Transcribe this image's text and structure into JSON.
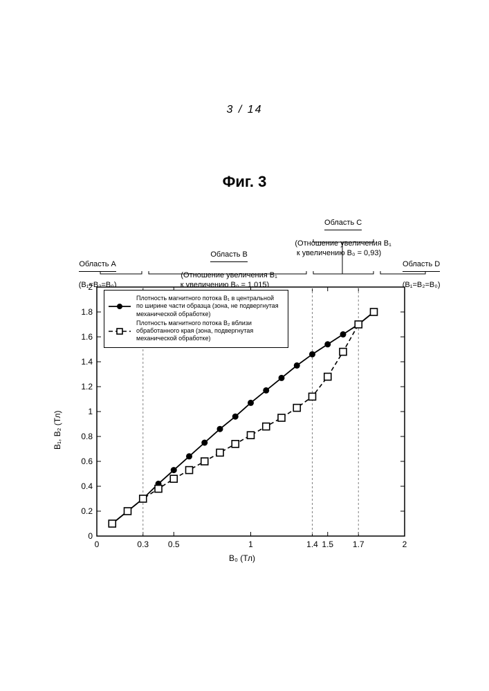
{
  "page": {
    "number": "3 / 14",
    "figure_title": "Фиг. 3"
  },
  "regions": {
    "A": {
      "title": "Область А",
      "detail": "(B₁=B₂=B₀)"
    },
    "B": {
      "title": "Область В",
      "detail": "(Отношение увеличения B₁\nк увеличению B₀ = 1,015)"
    },
    "C": {
      "title": "Область С",
      "detail": "(Отношение увеличения B₁\nк увеличению B₀ = 0,93)"
    },
    "D": {
      "title": "Область D",
      "detail": "(B₁=B₂=B₀)"
    }
  },
  "chart": {
    "type": "line-scatter",
    "background_color": "#ffffff",
    "axis_color": "#000000",
    "guideline_color": "#808080",
    "guideline_dash": "3,3",
    "x": {
      "label": "B₀ (Тл)",
      "min": 0,
      "max": 2,
      "ticks": [
        0,
        0.3,
        0.5,
        1,
        1.4,
        1.5,
        1.7,
        2
      ]
    },
    "y": {
      "label": "B₁, B₂ (Тл)",
      "min": 0,
      "max": 2,
      "ticks": [
        0,
        0.2,
        0.4,
        0.6,
        0.8,
        1,
        1.2,
        1.4,
        1.6,
        1.8,
        2
      ]
    },
    "guidelines_x": [
      0.3,
      1.4,
      1.7
    ],
    "legend": {
      "series1": "Плотность магнитного потока B₁ в центральной\nпо ширине части образца (зона, не подвергнутая\nмеханической обработке)",
      "series2": "Плотность магнитного потока B₂ вблизи\nобработанного края (зона, подвергнутая\nмеханической обработке)"
    },
    "series1": {
      "name": "B1-central",
      "color": "#000000",
      "marker": "filled-circle",
      "marker_size": 4.5,
      "line_width": 1.8,
      "line_dash": "none",
      "data": [
        {
          "x": 0.1,
          "y": 0.1
        },
        {
          "x": 0.2,
          "y": 0.2
        },
        {
          "x": 0.3,
          "y": 0.3
        },
        {
          "x": 0.4,
          "y": 0.42
        },
        {
          "x": 0.5,
          "y": 0.53
        },
        {
          "x": 0.6,
          "y": 0.64
        },
        {
          "x": 0.7,
          "y": 0.75
        },
        {
          "x": 0.8,
          "y": 0.86
        },
        {
          "x": 0.9,
          "y": 0.96
        },
        {
          "x": 1.0,
          "y": 1.07
        },
        {
          "x": 1.1,
          "y": 1.17
        },
        {
          "x": 1.2,
          "y": 1.27
        },
        {
          "x": 1.3,
          "y": 1.37
        },
        {
          "x": 1.4,
          "y": 1.46
        },
        {
          "x": 1.5,
          "y": 1.54
        },
        {
          "x": 1.6,
          "y": 1.62
        },
        {
          "x": 1.7,
          "y": 1.7
        },
        {
          "x": 1.8,
          "y": 1.8
        }
      ]
    },
    "series2": {
      "name": "B2-edge",
      "color": "#000000",
      "marker": "open-square",
      "marker_size": 5,
      "line_width": 1.6,
      "line_dash": "6,4",
      "data": [
        {
          "x": 0.1,
          "y": 0.1
        },
        {
          "x": 0.2,
          "y": 0.2
        },
        {
          "x": 0.3,
          "y": 0.3
        },
        {
          "x": 0.4,
          "y": 0.38
        },
        {
          "x": 0.5,
          "y": 0.46
        },
        {
          "x": 0.6,
          "y": 0.53
        },
        {
          "x": 0.7,
          "y": 0.6
        },
        {
          "x": 0.8,
          "y": 0.67
        },
        {
          "x": 0.9,
          "y": 0.74
        },
        {
          "x": 1.0,
          "y": 0.81
        },
        {
          "x": 1.1,
          "y": 0.88
        },
        {
          "x": 1.2,
          "y": 0.95
        },
        {
          "x": 1.3,
          "y": 1.03
        },
        {
          "x": 1.4,
          "y": 1.12
        },
        {
          "x": 1.5,
          "y": 1.28
        },
        {
          "x": 1.6,
          "y": 1.48
        },
        {
          "x": 1.7,
          "y": 1.7
        },
        {
          "x": 1.8,
          "y": 1.8
        }
      ]
    }
  }
}
